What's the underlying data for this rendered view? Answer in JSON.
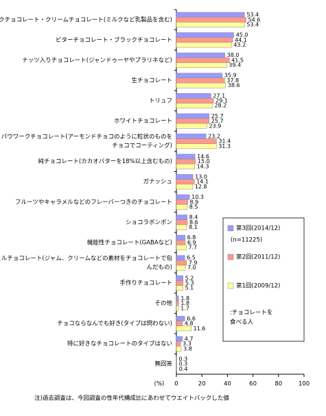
{
  "chart_data": {
    "type": "bar",
    "orientation": "horizontal",
    "categories": [
      [
        "ミルクチョコレート・クリームチョコレート(ミルクなど乳製品を含む)"
      ],
      [
        "ビターチョコレート・ブラックチョコレート"
      ],
      [
        "ナッツ入りチョコレート(ジャンドゥーヤやプラリネなど)"
      ],
      [
        "生チョコレート"
      ],
      [
        "トリュフ"
      ],
      [
        "ホワイトチョコレート"
      ],
      [
        "パウワークチョコレート(アーモンドチョコのように粒状のものを",
        "チョコでコーティング)"
      ],
      [
        "純チョコレート(カカオバターを18%以上含むもの)"
      ],
      [
        "ガナッシュ"
      ],
      [
        "フルーツやキャラメルなどのフレーバーつきのチョコレート"
      ],
      [
        "ショコラボンボン"
      ],
      [
        "機能性チョコレート(GABAなど)"
      ],
      [
        "シェルチョコレート(ジャム、クリームなどの素材をチョコレートで包",
        "んだもの)"
      ],
      [
        "手作りチョコレート"
      ],
      [
        "その他"
      ],
      [
        "チョコならなんでも好き(タイプは問わない)"
      ],
      [
        "特に好きなチョコレートのタイプはない"
      ],
      [
        "無回答"
      ]
    ],
    "series": [
      {
        "name": "第3回(2014/12)",
        "note": "(n=11225)",
        "color": "#9999ff",
        "values": [
          53.4,
          45.0,
          38.0,
          35.9,
          27.1,
          25.7,
          23.2,
          14.6,
          13.0,
          10.3,
          8.4,
          6.8,
          6.5,
          5.2,
          1.8,
          6.6,
          4.7,
          0.3
        ],
        "value_labels": [
          "53.4",
          "45.0",
          "38.0",
          "35.9",
          "27.1",
          "25.7",
          "23.2",
          "14.6",
          "13.0",
          "10.3",
          "8.4",
          "6.8",
          "6.5",
          "5.2",
          "1.8",
          "6.6",
          "4.7",
          "0.3"
        ]
      },
      {
        "name": "第2回(2011/12)",
        "color": "#ff9a8a",
        "values": [
          54.6,
          44.1,
          41.5,
          37.8,
          29.1,
          25.7,
          31.4,
          15.0,
          14.1,
          8.9,
          8.6,
          6.9,
          7.9,
          5.3,
          1.8,
          4.8,
          3.3,
          0.3
        ],
        "value_labels": [
          "54.6",
          "44.1",
          "41.5",
          "37.8",
          "29.1",
          "25.7",
          "31.4",
          "15.0",
          "14.1",
          "8.9",
          "8.6",
          "6.9",
          "7.9",
          "5.3",
          "1.8",
          "4.8",
          "3.3",
          "0.3"
        ]
      },
      {
        "name": "第1回(2009/12)",
        "color": "#ffff99",
        "values": [
          53.4,
          43.2,
          39.4,
          38.6,
          28.2,
          23.9,
          31.3,
          14.3,
          12.8,
          8.5,
          8.1,
          7.7,
          7.0,
          5.1,
          1.7,
          11.6,
          3.8,
          0.4
        ],
        "value_labels": [
          "53.4",
          "43.2",
          "39.4",
          "38.6",
          "28.2",
          "23.9",
          "31.3",
          "14.3",
          "12.8",
          "8.5",
          "8.1",
          "7.7",
          "7.0",
          "5.1",
          "1.7",
          "11.6",
          "3.8",
          "0.4"
        ]
      }
    ],
    "legend_note": [
      ":チョコレートを",
      "食べる人"
    ],
    "x_unit": "(%)",
    "xlim": [
      0,
      100
    ],
    "xticks": [
      0,
      20,
      40,
      60,
      80,
      100
    ],
    "footnote": "注)過去調査は、今回調査の性年代構成比にあわせてウエイトバックした値"
  }
}
